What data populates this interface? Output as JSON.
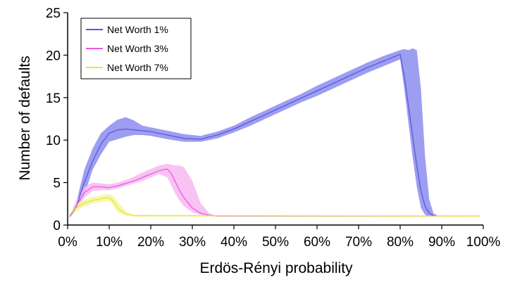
{
  "chart_data": {
    "type": "line",
    "title": "",
    "xlabel": "Erdös-Rényi probability",
    "ylabel": "Number of defaults",
    "xlim": [
      0,
      100
    ],
    "ylim": [
      0,
      25
    ],
    "x_ticks": [
      0,
      10,
      20,
      30,
      40,
      50,
      60,
      70,
      80,
      90,
      100
    ],
    "x_tick_labels": [
      "0%",
      "10%",
      "20%",
      "30%",
      "40%",
      "50%",
      "60%",
      "70%",
      "80%",
      "90%",
      "100%"
    ],
    "y_ticks": [
      0,
      5,
      10,
      15,
      20,
      25
    ],
    "y_tick_labels": [
      "0",
      "5",
      "10",
      "15",
      "20",
      "25"
    ],
    "grid": false,
    "legend_position": "top-left",
    "series": [
      {
        "name": "Net Worth 1%",
        "color": "#5a5ad6",
        "band_color": "#8c8cf0",
        "x": [
          0.5,
          2,
          4,
          6,
          8,
          10,
          12,
          14,
          16,
          18,
          20,
          24,
          28,
          32,
          36,
          40,
          44,
          48,
          52,
          56,
          60,
          64,
          68,
          72,
          76,
          80,
          81,
          82,
          83,
          84,
          85,
          86,
          87,
          88,
          89,
          99
        ],
        "y": [
          1.0,
          2.0,
          5.0,
          7.5,
          9.5,
          10.8,
          11.2,
          11.3,
          11.2,
          11.1,
          11.0,
          10.6,
          10.2,
          10.1,
          10.6,
          11.3,
          12.2,
          13.1,
          14.0,
          14.9,
          15.8,
          16.7,
          17.6,
          18.5,
          19.3,
          20.1,
          17.5,
          14.0,
          10.5,
          7.0,
          4.0,
          2.2,
          1.4,
          1.1,
          1.05,
          1.05
        ],
        "lower": [
          0.9,
          1.8,
          3.5,
          6.5,
          8.3,
          9.8,
          10.1,
          10.4,
          10.6,
          10.6,
          10.5,
          10.1,
          9.8,
          9.8,
          10.2,
          10.9,
          11.7,
          12.6,
          13.5,
          14.4,
          15.2,
          16.1,
          17.0,
          17.9,
          18.7,
          19.5,
          16.0,
          12.0,
          8.0,
          4.5,
          2.0,
          1.2,
          1.0,
          1.0,
          1.0,
          1.0
        ],
        "upper": [
          1.1,
          2.5,
          6.5,
          9.0,
          10.8,
          11.7,
          12.4,
          12.7,
          12.3,
          11.7,
          11.5,
          11.1,
          10.7,
          10.5,
          11.0,
          11.7,
          12.7,
          13.6,
          14.5,
          15.4,
          16.4,
          17.3,
          18.2,
          19.1,
          19.9,
          20.6,
          20.7,
          20.6,
          20.8,
          20.6,
          16.0,
          8.0,
          3.0,
          1.4,
          1.1,
          1.1
        ]
      },
      {
        "name": "Net Worth 3%",
        "color": "#e85ae8",
        "band_color": "#f7b8f0",
        "x": [
          0.5,
          2,
          4,
          6,
          8,
          10,
          12,
          14,
          16,
          18,
          20,
          22,
          24,
          25,
          26,
          27,
          28,
          30,
          32,
          34,
          36,
          99
        ],
        "y": [
          1.0,
          2.2,
          3.8,
          4.5,
          4.5,
          4.4,
          4.6,
          4.9,
          5.2,
          5.6,
          6.0,
          6.4,
          6.6,
          6.0,
          5.0,
          4.0,
          3.2,
          2.0,
          1.4,
          1.15,
          1.05,
          1.05
        ],
        "lower": [
          0.9,
          1.8,
          3.2,
          4.0,
          4.1,
          4.1,
          4.3,
          4.6,
          4.9,
          5.2,
          5.6,
          6.0,
          5.6,
          4.6,
          3.6,
          2.8,
          2.2,
          1.5,
          1.2,
          1.05,
          1.0,
          1.0
        ],
        "upper": [
          1.1,
          2.8,
          4.5,
          5.0,
          4.9,
          4.8,
          5.0,
          5.3,
          5.7,
          6.2,
          6.6,
          7.0,
          7.2,
          7.1,
          7.0,
          7.0,
          6.8,
          5.2,
          2.6,
          1.4,
          1.1,
          1.1
        ]
      },
      {
        "name": "Net Worth 7%",
        "color": "#e6e640",
        "band_color": "#f6f6a0",
        "x": [
          0.5,
          2,
          4,
          6,
          8,
          9,
          10,
          11,
          12,
          14,
          16,
          99
        ],
        "y": [
          1.2,
          2.0,
          2.6,
          2.9,
          3.1,
          3.2,
          3.2,
          2.8,
          2.0,
          1.3,
          1.1,
          1.05
        ],
        "lower": [
          1.0,
          1.6,
          2.2,
          2.5,
          2.7,
          2.8,
          2.8,
          2.3,
          1.5,
          1.1,
          1.0,
          1.0
        ],
        "upper": [
          1.4,
          2.4,
          3.0,
          3.3,
          3.5,
          3.6,
          3.6,
          3.4,
          2.8,
          1.6,
          1.2,
          1.1
        ]
      }
    ]
  }
}
